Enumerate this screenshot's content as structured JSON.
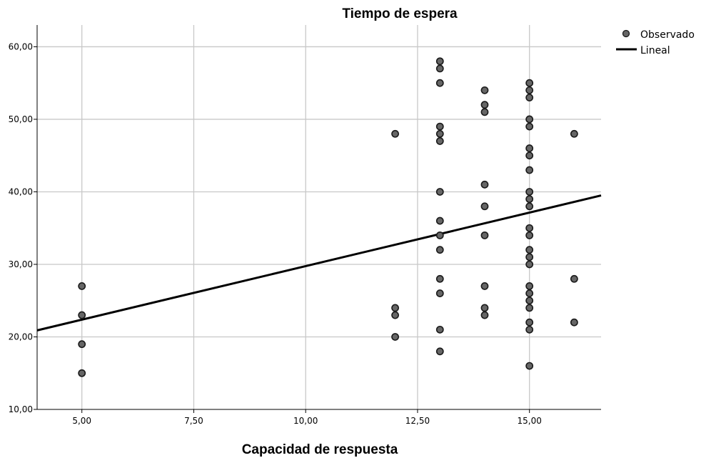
{
  "chart_data": {
    "type": "scatter",
    "title": "Tiempo de espera",
    "xlabel": "Capacidad de respuesta",
    "ylabel": "",
    "xlim": [
      4,
      16.6
    ],
    "ylim": [
      10,
      63
    ],
    "x_ticks": [
      5,
      7.5,
      10,
      12.5,
      15
    ],
    "x_tick_labels": [
      "5,00",
      "7,50",
      "10,00",
      "12,50",
      "15,00"
    ],
    "y_ticks": [
      10,
      20,
      30,
      40,
      50,
      60
    ],
    "y_tick_labels": [
      "10,00",
      "20,00",
      "30,00",
      "40,00",
      "50,00",
      "60,00"
    ],
    "grid": true,
    "legend_position": "top-right",
    "colors": {
      "points": "#666666",
      "point_edge": "#1a1a1a",
      "line": "#000000",
      "grid": "#c8c8c8"
    },
    "series": [
      {
        "name": "Observado",
        "kind": "points",
        "points": [
          [
            5,
            27
          ],
          [
            5,
            23
          ],
          [
            5,
            19
          ],
          [
            5,
            15
          ],
          [
            12,
            48
          ],
          [
            12,
            24
          ],
          [
            12,
            23
          ],
          [
            12,
            20
          ],
          [
            13,
            58
          ],
          [
            13,
            57
          ],
          [
            13,
            55
          ],
          [
            13,
            49
          ],
          [
            13,
            48
          ],
          [
            13,
            47
          ],
          [
            13,
            40
          ],
          [
            13,
            36
          ],
          [
            13,
            34
          ],
          [
            13,
            32
          ],
          [
            13,
            28
          ],
          [
            13,
            26
          ],
          [
            13,
            21
          ],
          [
            13,
            18
          ],
          [
            14,
            54
          ],
          [
            14,
            52
          ],
          [
            14,
            51
          ],
          [
            14,
            41
          ],
          [
            14,
            38
          ],
          [
            14,
            34
          ],
          [
            14,
            27
          ],
          [
            14,
            24
          ],
          [
            14,
            23
          ],
          [
            15,
            55
          ],
          [
            15,
            54
          ],
          [
            15,
            53
          ],
          [
            15,
            50
          ],
          [
            15,
            49
          ],
          [
            15,
            46
          ],
          [
            15,
            45
          ],
          [
            15,
            43
          ],
          [
            15,
            40
          ],
          [
            15,
            39
          ],
          [
            15,
            38
          ],
          [
            15,
            35
          ],
          [
            15,
            34
          ],
          [
            15,
            32
          ],
          [
            15,
            31
          ],
          [
            15,
            30
          ],
          [
            15,
            27
          ],
          [
            15,
            26
          ],
          [
            15,
            25
          ],
          [
            15,
            24
          ],
          [
            15,
            22
          ],
          [
            15,
            21
          ],
          [
            15,
            16
          ],
          [
            16,
            48
          ],
          [
            16,
            28
          ],
          [
            16,
            22
          ]
        ]
      },
      {
        "name": "Lineal",
        "kind": "line",
        "x": [
          4,
          16.6
        ],
        "y": [
          20.9,
          39.5
        ]
      }
    ]
  }
}
